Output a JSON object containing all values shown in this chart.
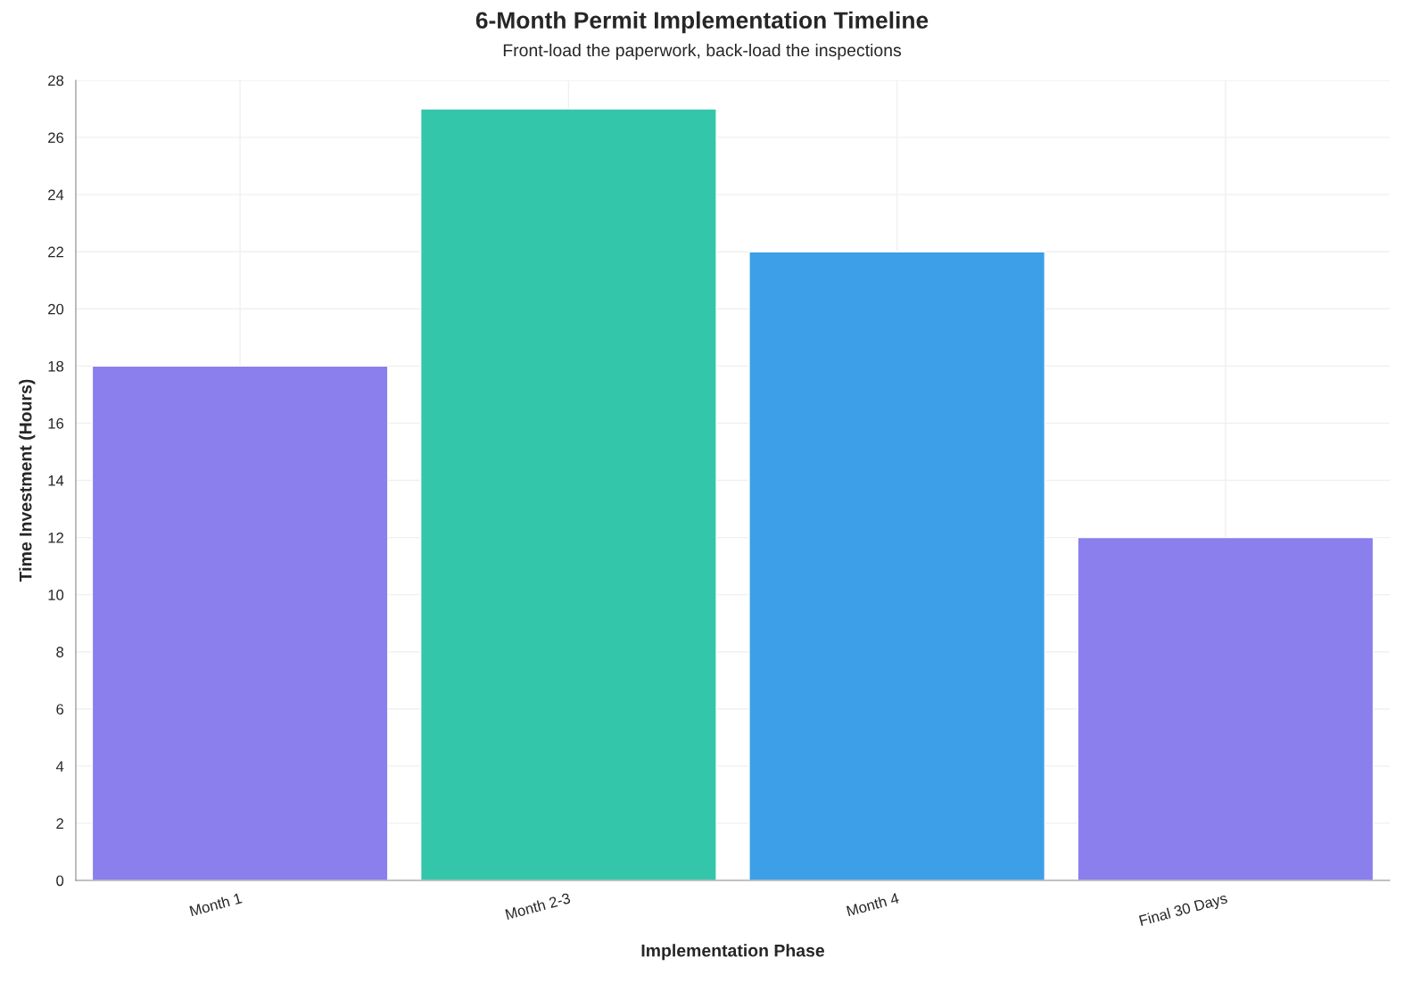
{
  "chart_data": {
    "type": "bar",
    "title": "6-Month Permit Implementation Timeline",
    "subtitle": "Front-load the paperwork, back-load the inspections",
    "xlabel": "Implementation Phase",
    "ylabel": "Time Investment (Hours)",
    "categories": [
      "Month 1",
      "Month 2-3",
      "Month 4",
      "Final 30 Days"
    ],
    "values": [
      18,
      27,
      22,
      12
    ],
    "colors": [
      "#8a7fec",
      "#34c6aa",
      "#3c9fe8",
      "#8a7fec"
    ],
    "ylim": [
      0,
      28
    ],
    "yticks": [
      0,
      2,
      4,
      6,
      8,
      10,
      12,
      14,
      16,
      18,
      20,
      22,
      24,
      26,
      28
    ],
    "grid": true
  }
}
